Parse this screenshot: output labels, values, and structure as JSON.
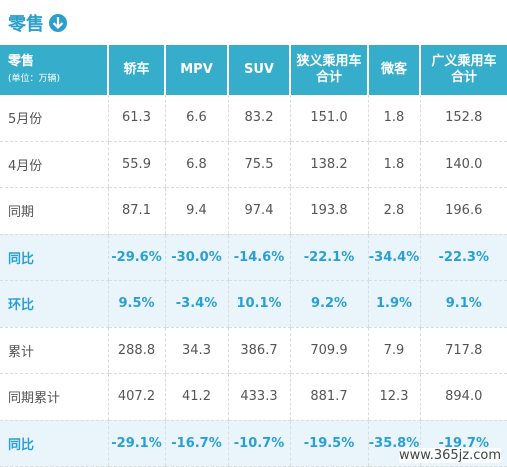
{
  "header": {
    "title": "零售"
  },
  "table": {
    "corner": [
      "零售",
      "(单位：万辆)"
    ],
    "columns": [
      [
        "轿车"
      ],
      [
        "MPV"
      ],
      [
        "SUV"
      ],
      [
        "狭义乘用车",
        "合计"
      ],
      [
        "微客"
      ],
      [
        "广义乘用车",
        "合计"
      ]
    ],
    "rows": [
      {
        "label": "5月份",
        "cells": [
          "61.3",
          "6.6",
          "83.2",
          "151.0",
          "1.8",
          "152.8"
        ]
      },
      {
        "label": "4月份",
        "cells": [
          "55.9",
          "6.8",
          "75.5",
          "138.2",
          "1.8",
          "140.0"
        ]
      },
      {
        "label": "同期",
        "cells": [
          "87.1",
          "9.4",
          "97.4",
          "193.8",
          "2.8",
          "196.6"
        ]
      },
      {
        "label": "同比",
        "highlight": true,
        "cells": [
          "-29.6%",
          "-30.0%",
          "-14.6%",
          "-22.1%",
          "-34.4%",
          "-22.3%"
        ]
      },
      {
        "label": "环比",
        "highlight": true,
        "cells": [
          "9.5%",
          "-3.4%",
          "10.1%",
          "9.2%",
          "1.9%",
          "9.1%"
        ]
      },
      {
        "label": "累计",
        "cells": [
          "288.8",
          "34.3",
          "386.7",
          "709.9",
          "7.9",
          "717.8"
        ]
      },
      {
        "label": "同期累计",
        "cells": [
          "407.2",
          "41.2",
          "433.3",
          "881.7",
          "12.3",
          "894.0"
        ]
      },
      {
        "label": "同比",
        "highlight": true,
        "cells": [
          "-29.1%",
          "-16.7%",
          "-10.7%",
          "-19.5%",
          "-35.8%",
          "-19.7%"
        ]
      }
    ]
  },
  "watermark": "www.365jz.com"
}
